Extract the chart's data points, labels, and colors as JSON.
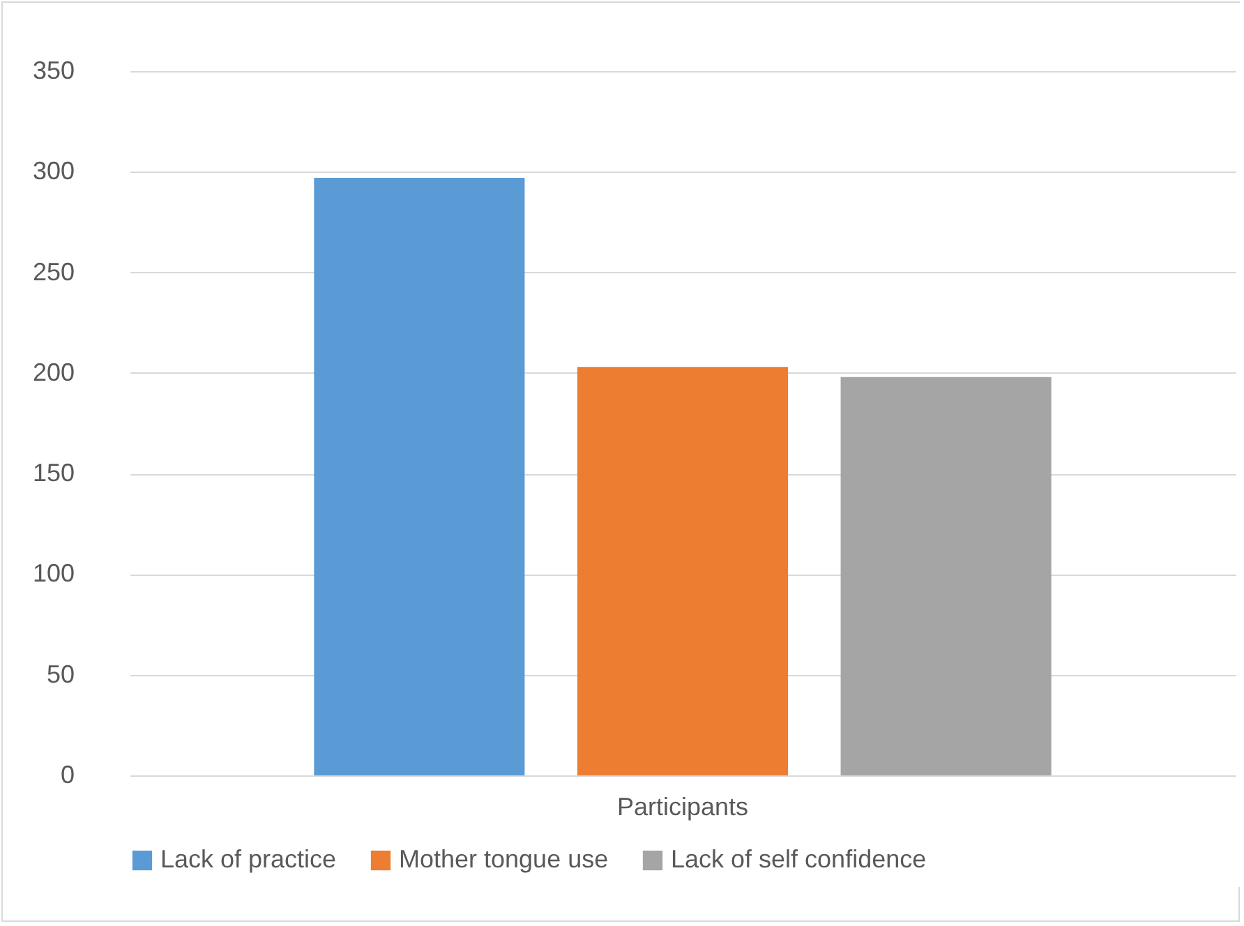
{
  "chart_data": {
    "type": "bar",
    "categories": [
      "Participants"
    ],
    "series": [
      {
        "name": "Lack of practice",
        "color": "#5b9bd5",
        "values": [
          297
        ]
      },
      {
        "name": "Mother tongue use",
        "color": "#ed7d31",
        "values": [
          203
        ]
      },
      {
        "name": "Lack of self confidence",
        "color": "#a5a5a5",
        "values": [
          198
        ]
      }
    ],
    "ylim": [
      0,
      350
    ],
    "yticks": [
      0,
      50,
      100,
      150,
      200,
      250,
      300,
      350
    ],
    "grid": "y",
    "legend": "bottom"
  }
}
